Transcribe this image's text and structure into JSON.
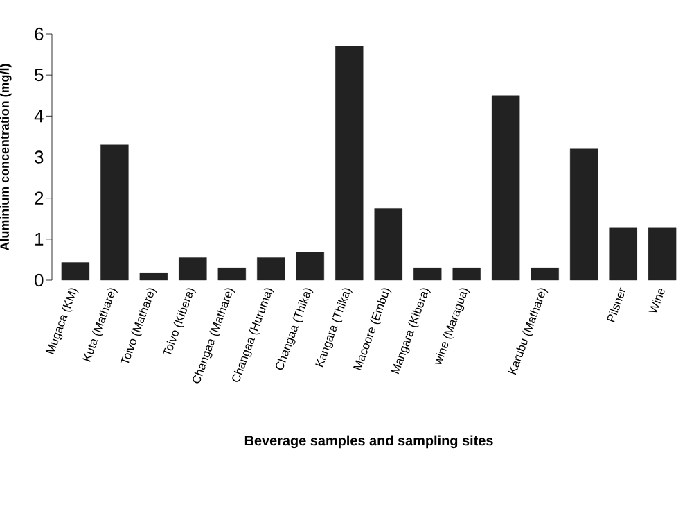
{
  "chart_data": {
    "type": "bar",
    "xlabel": "Beverage samples and sampling sites",
    "ylabel": "Aluminium concentration (mg/l)",
    "categories": [
      "Mugaca (KM)",
      "Kuta (Mathare)",
      "Toivo (Mathare)",
      "Toivo (Kibera)",
      "Changaa (Mathare)",
      "Changaa (Huruma)",
      "Changaa (Thika)",
      "Kangara (Thika)",
      "Macoore (Embu)",
      "Mangara (Kibera)",
      "wine (Maragua)",
      null,
      "Karubu (Mathare)",
      null,
      "Pilsner",
      "Wine"
    ],
    "values": [
      0.43,
      3.3,
      0.18,
      0.55,
      0.3,
      0.55,
      0.68,
      5.7,
      1.75,
      0.3,
      0.3,
      4.5,
      0.3,
      3.2,
      1.27,
      1.27
    ],
    "color": "#222222",
    "ylim": [
      0,
      6
    ],
    "yticks": [
      0,
      1,
      2,
      3,
      4,
      5,
      6
    ],
    "grid": false
  }
}
